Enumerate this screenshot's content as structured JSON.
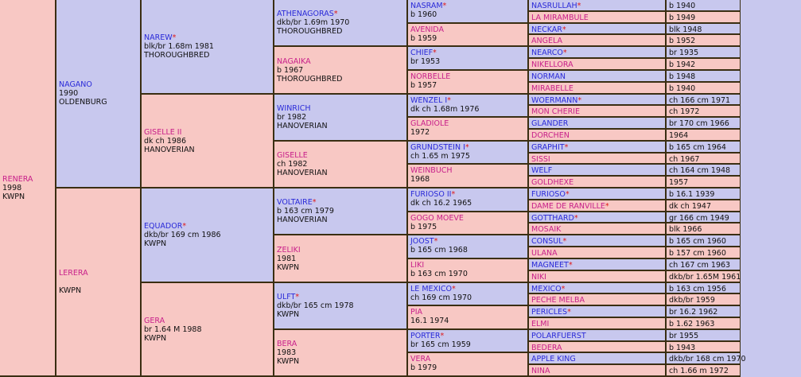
{
  "root": {
    "name": "RENERA",
    "lines": [
      "1998",
      "KWPN"
    ],
    "sex": "f"
  },
  "gen1": [
    {
      "name": "NAGANO",
      "star": false,
      "lines": [
        "1990",
        "OLDENBURG"
      ],
      "sex": "m"
    },
    {
      "name": "LERERA",
      "star": false,
      "lines": [
        "",
        "KWPN"
      ],
      "sex": "f"
    }
  ],
  "gen2": [
    {
      "name": "NAREW",
      "star": true,
      "lines": [
        "blk/br 1.68m 1981",
        "THOROUGHBRED"
      ],
      "sex": "m"
    },
    {
      "name": "GISELLE II",
      "star": false,
      "lines": [
        "dk ch 1986",
        "HANOVERIAN"
      ],
      "sex": "f"
    },
    {
      "name": "EQUADOR",
      "star": true,
      "lines": [
        "dkb/br 169 cm 1986",
        "KWPN"
      ],
      "sex": "m"
    },
    {
      "name": "GERA",
      "star": false,
      "lines": [
        "br 1.64 M 1988",
        "KWPN"
      ],
      "sex": "f"
    }
  ],
  "gen3": [
    {
      "name": "ATHENAGORAS",
      "star": true,
      "lines": [
        "dkb/br 1.69m 1970",
        "THOROUGHBRED"
      ],
      "sex": "m"
    },
    {
      "name": "NAGAIKA",
      "star": false,
      "lines": [
        "b 1967",
        "THOROUGHBRED"
      ],
      "sex": "f"
    },
    {
      "name": "WINRICH",
      "star": false,
      "lines": [
        "br 1982",
        "HANOVERIAN"
      ],
      "sex": "m"
    },
    {
      "name": "GISELLE",
      "star": false,
      "lines": [
        "ch 1982",
        "HANOVERIAN"
      ],
      "sex": "f"
    },
    {
      "name": "VOLTAIRE",
      "star": true,
      "lines": [
        "b 163 cm 1979",
        "HANOVERIAN"
      ],
      "sex": "m"
    },
    {
      "name": "ZELIKI",
      "star": false,
      "lines": [
        "1981",
        "KWPN"
      ],
      "sex": "f"
    },
    {
      "name": "ULFT",
      "star": true,
      "lines": [
        "dkb/br 165 cm 1978",
        "KWPN"
      ],
      "sex": "m"
    },
    {
      "name": "BERA",
      "star": false,
      "lines": [
        "1983",
        "KWPN"
      ],
      "sex": "f"
    }
  ],
  "gen4": [
    {
      "name": "NASRAM",
      "star": true,
      "detail": "b 1960",
      "sex": "m"
    },
    {
      "name": "AVENIDA",
      "star": false,
      "detail": "b 1959",
      "sex": "f"
    },
    {
      "name": "CHIEF",
      "star": true,
      "detail": "br 1953",
      "sex": "m"
    },
    {
      "name": "NORBELLE",
      "star": false,
      "detail": "b 1957",
      "sex": "f"
    },
    {
      "name": "WENZEL I",
      "star": true,
      "detail": "dk ch 1.68m 1976",
      "sex": "m"
    },
    {
      "name": "GLADIOLE",
      "star": false,
      "detail": "1972",
      "sex": "f"
    },
    {
      "name": "GRUNDSTEIN I",
      "star": true,
      "detail": "ch 1.65 m 1975",
      "sex": "m"
    },
    {
      "name": "WEINBUCH",
      "star": false,
      "detail": "1968",
      "sex": "f"
    },
    {
      "name": "FURIOSO II",
      "star": true,
      "detail": "dk ch 16.2 1965",
      "sex": "m"
    },
    {
      "name": "GOGO MOEVE",
      "star": false,
      "detail": "b 1975",
      "sex": "f"
    },
    {
      "name": "JOOST",
      "star": true,
      "detail": "b 165 cm 1968",
      "sex": "m"
    },
    {
      "name": "LIKI",
      "star": false,
      "detail": "b 163 cm 1970",
      "sex": "f"
    },
    {
      "name": "LE MEXICO",
      "star": true,
      "detail": "ch 169 cm 1970",
      "sex": "m"
    },
    {
      "name": "PIA",
      "star": false,
      "detail": "16.1 1974",
      "sex": "f"
    },
    {
      "name": "PORTER",
      "star": true,
      "detail": "br 165 cm 1959",
      "sex": "m"
    },
    {
      "name": "VERA",
      "star": false,
      "detail": "b 1979",
      "sex": "f"
    }
  ],
  "gen5": [
    {
      "name": "NASRULLAH",
      "star": true,
      "detail": "b 1940",
      "sex": "m"
    },
    {
      "name": "LA MIRAMBULE",
      "star": false,
      "detail": "b 1949",
      "sex": "f"
    },
    {
      "name": "NECKAR",
      "star": true,
      "detail": "blk 1948",
      "sex": "m"
    },
    {
      "name": "ANGELA",
      "star": false,
      "detail": "b 1952",
      "sex": "f"
    },
    {
      "name": "NEARCO",
      "star": true,
      "detail": "br 1935",
      "sex": "m"
    },
    {
      "name": "NIKELLORA",
      "star": false,
      "detail": "b 1942",
      "sex": "f"
    },
    {
      "name": "NORMAN",
      "star": false,
      "detail": "b 1948",
      "sex": "m"
    },
    {
      "name": "MIRABELLE",
      "star": false,
      "detail": "b 1940",
      "sex": "f"
    },
    {
      "name": "WOERMANN",
      "star": true,
      "detail": "ch 166 cm 1971",
      "sex": "m"
    },
    {
      "name": "MON CHERIE",
      "star": false,
      "detail": "ch 1972",
      "sex": "f"
    },
    {
      "name": "GLANDER",
      "star": false,
      "detail": "br 170 cm 1966",
      "sex": "m"
    },
    {
      "name": "DORCHEN",
      "star": false,
      "detail": "1964",
      "sex": "f"
    },
    {
      "name": "GRAPHIT",
      "star": true,
      "detail": "b 165 cm 1964",
      "sex": "m"
    },
    {
      "name": "SISSI",
      "star": false,
      "detail": "ch 1967",
      "sex": "f"
    },
    {
      "name": "WELF",
      "star": false,
      "detail": "ch 164 cm 1948",
      "sex": "m"
    },
    {
      "name": "GOLDHEXE",
      "star": false,
      "detail": "1957",
      "sex": "f"
    },
    {
      "name": "FURIOSO",
      "star": true,
      "detail": "b 16.1 1939",
      "sex": "m"
    },
    {
      "name": "DAME DE RANVILLE",
      "star": true,
      "detail": "dk ch 1947",
      "sex": "f"
    },
    {
      "name": "GOTTHARD",
      "star": true,
      "detail": "gr 166 cm 1949",
      "sex": "m"
    },
    {
      "name": "MOSAIK",
      "star": false,
      "detail": "blk 1966",
      "sex": "f"
    },
    {
      "name": "CONSUL",
      "star": true,
      "detail": "b 165 cm 1960",
      "sex": "m"
    },
    {
      "name": "ULANA",
      "star": false,
      "detail": "b 157 cm 1960",
      "sex": "f"
    },
    {
      "name": "MAGNEET",
      "star": true,
      "detail": "ch 167 cm 1963",
      "sex": "m"
    },
    {
      "name": "NIKI",
      "star": false,
      "detail": "dkb/br 1.65M 1961",
      "sex": "f"
    },
    {
      "name": "MEXICO",
      "star": true,
      "detail": "b 163 cm 1956",
      "sex": "m"
    },
    {
      "name": "PECHE MELBA",
      "star": false,
      "detail": "dkb/br 1959",
      "sex": "f"
    },
    {
      "name": "PERICLES",
      "star": true,
      "detail": "br 16.2 1962",
      "sex": "m"
    },
    {
      "name": "ELMI",
      "star": false,
      "detail": "b 1.62 1963",
      "sex": "f"
    },
    {
      "name": "POLARFUERST",
      "star": false,
      "detail": "br 1955",
      "sex": "m"
    },
    {
      "name": "BEDERA",
      "star": false,
      "detail": "b 1943",
      "sex": "f"
    },
    {
      "name": "APPLE KING",
      "star": false,
      "detail": "dkb/br 168 cm 1970",
      "sex": "m"
    },
    {
      "name": "NINA",
      "star": false,
      "detail": "ch 1.66 m 1972",
      "sex": "f"
    }
  ],
  "colors": {
    "sire_bg": "#c8c8ee",
    "dam_bg": "#f8c8c4",
    "sire_link": "#2a2ad8",
    "dam_link": "#c8208a",
    "star": "#e01818",
    "border": "#3a2e12"
  }
}
